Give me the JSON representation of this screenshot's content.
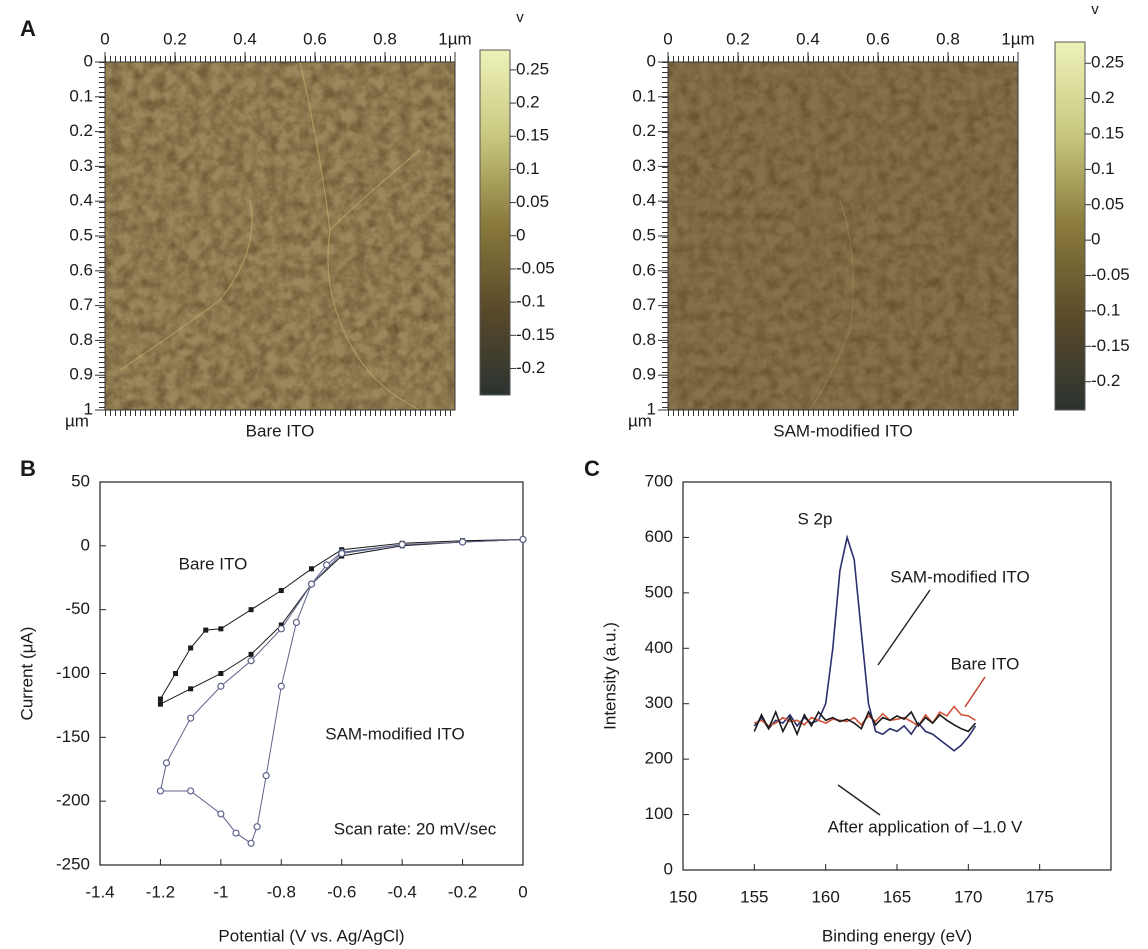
{
  "chart_data": [
    {
      "type": "afm",
      "panel_label": "A",
      "title": "Bare ITO",
      "xlim": [
        0,
        1
      ],
      "xticks": [
        0,
        0.2,
        0.4,
        0.6,
        0.8,
        {
          "value": 1,
          "label": "1µm"
        }
      ],
      "ylim": [
        0,
        1
      ],
      "yticks": [
        0,
        0.1,
        0.2,
        0.3,
        0.4,
        0.5,
        0.6,
        0.7,
        0.8,
        0.9,
        1
      ],
      "y_unit": "µm",
      "colorbar": {
        "label": "v",
        "lim": [
          -0.24,
          0.28
        ],
        "ticks": [
          0.25,
          0.2,
          0.15,
          0.1,
          0.05,
          0,
          -0.05,
          -0.1,
          -0.15,
          -0.2
        ],
        "colors": [
          "#2b3330",
          "#5a4a2a",
          "#8a7a3c",
          "#c8c880",
          "#eef2b8"
        ]
      }
    },
    {
      "type": "afm",
      "title": "SAM-modified ITO",
      "xlim": [
        0,
        1
      ],
      "xticks": [
        0,
        0.2,
        0.4,
        0.6,
        0.8,
        {
          "value": 1,
          "label": "1µm"
        }
      ],
      "ylim": [
        0,
        1
      ],
      "yticks": [
        0,
        0.1,
        0.2,
        0.3,
        0.4,
        0.5,
        0.6,
        0.7,
        0.8,
        0.9,
        1
      ],
      "y_unit": "µm",
      "colorbar": {
        "label": "v",
        "lim": [
          -0.24,
          0.28
        ],
        "ticks": [
          0.25,
          0.2,
          0.15,
          0.1,
          0.05,
          0,
          -0.05,
          -0.1,
          -0.15,
          -0.2
        ],
        "colors": [
          "#2b3330",
          "#5a4a2a",
          "#8a7a3c",
          "#c8c880",
          "#eef2b8"
        ]
      }
    },
    {
      "type": "line",
      "panel_label": "B",
      "x_label": "Potential (V vs. Ag/AgCl)",
      "y_label": "Current (μA)",
      "xlim": [
        -1.4,
        0
      ],
      "xticks": [
        -1.4,
        -1.2,
        -1,
        -0.8,
        -0.6,
        -0.4,
        -0.2,
        0
      ],
      "ylim": [
        -250,
        50
      ],
      "yticks": [
        -250,
        -200,
        -150,
        -100,
        -50,
        0,
        50
      ],
      "series": [
        {
          "name": "Bare ITO",
          "color": "#1a1a1a",
          "marker": "square",
          "x": [
            0,
            -0.2,
            -0.4,
            -0.6,
            -0.7,
            -0.8,
            -0.9,
            -1.0,
            -1.05,
            -1.1,
            -1.15,
            -1.2,
            -1.2,
            -1.1,
            -1.0,
            -0.9,
            -0.8,
            -0.7,
            -0.6,
            -0.4,
            -0.2,
            0
          ],
          "values": [
            5,
            4,
            2,
            -3,
            -18,
            -35,
            -50,
            -65,
            -66,
            -80,
            -100,
            -120,
            -124,
            -112,
            -100,
            -85,
            -62,
            -30,
            -8,
            0,
            3,
            5
          ]
        },
        {
          "name": "SAM-modified ITO",
          "color": "#5c6288",
          "marker": "circle",
          "x": [
            0,
            -0.2,
            -0.4,
            -0.6,
            -0.65,
            -0.7,
            -0.75,
            -0.8,
            -0.85,
            -0.88,
            -0.9,
            -0.95,
            -1.0,
            -1.1,
            -1.2,
            -1.18,
            -1.1,
            -1.0,
            -0.9,
            -0.8,
            -0.7,
            -0.6,
            -0.4,
            -0.2,
            0
          ],
          "values": [
            5,
            3,
            1,
            -5,
            -15,
            -30,
            -60,
            -110,
            -180,
            -220,
            -233,
            -225,
            -210,
            -192,
            -192,
            -170,
            -135,
            -110,
            -90,
            -65,
            -30,
            -6,
            1,
            3,
            5
          ]
        }
      ],
      "annotations": [
        "Scan rate: 20 mV/sec"
      ]
    },
    {
      "type": "line",
      "panel_label": "C",
      "x_label": "Binding energy (eV)",
      "y_label": "Intensity (a.u.)",
      "xlim": [
        150,
        180
      ],
      "xticks": [
        150,
        155,
        160,
        165,
        170,
        175
      ],
      "ylim": [
        0,
        700
      ],
      "yticks": [
        0,
        100,
        200,
        300,
        400,
        500,
        600,
        700
      ],
      "x": [
        155,
        155.5,
        156,
        156.5,
        157,
        157.5,
        158,
        158.5,
        159,
        159.5,
        160,
        160.5,
        161,
        161.5,
        162,
        162.5,
        163,
        163.5,
        164,
        164.5,
        165,
        165.5,
        166,
        166.5,
        167,
        167.5,
        168,
        168.5,
        169,
        169.5,
        170,
        170.5
      ],
      "series": [
        {
          "name": "SAM-modified ITO",
          "color": "#2b2f6e",
          "values": [
            260,
            275,
            255,
            270,
            265,
            280,
            260,
            275,
            265,
            270,
            300,
            400,
            540,
            600,
            560,
            430,
            300,
            250,
            245,
            255,
            250,
            260,
            245,
            265,
            250,
            245,
            235,
            225,
            215,
            225,
            240,
            260
          ]
        },
        {
          "name": "Bare ITO",
          "color": "#d0553a",
          "values": [
            265,
            270,
            260,
            265,
            275,
            268,
            270,
            262,
            275,
            270,
            265,
            272,
            270,
            268,
            275,
            262,
            278,
            268,
            282,
            270,
            272,
            275,
            268,
            260,
            280,
            265,
            285,
            278,
            295,
            280,
            278,
            270
          ]
        },
        {
          "name": "After application of –1.0 V",
          "color": "#1a1a1a",
          "values": [
            250,
            280,
            255,
            285,
            250,
            275,
            245,
            280,
            260,
            285,
            270,
            275,
            268,
            272,
            265,
            255,
            285,
            262,
            275,
            270,
            278,
            272,
            285,
            260,
            275,
            265,
            280,
            270,
            262,
            255,
            250,
            265
          ]
        }
      ],
      "annotations": [
        "S 2p"
      ]
    }
  ]
}
